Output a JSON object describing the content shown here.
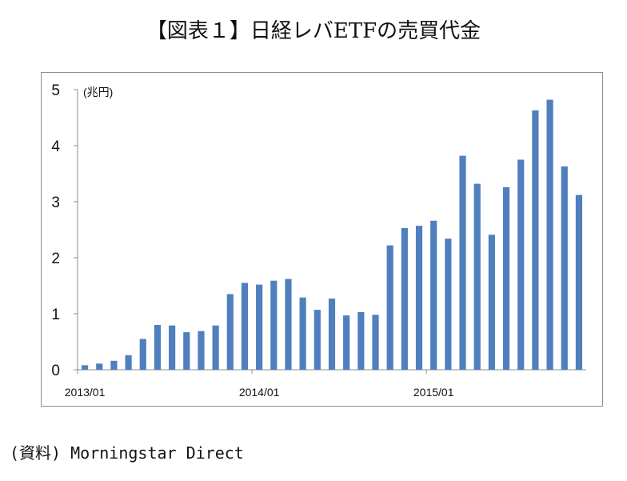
{
  "title": "【図表１】日経レバETFの売買代金",
  "source": "(資料) Morningstar Direct",
  "chart_data": {
    "type": "bar",
    "unit_label": "(兆円)",
    "ylim": [
      0,
      5
    ],
    "y_ticks": [
      0,
      1,
      2,
      3,
      4,
      5
    ],
    "x_tick_labels": [
      {
        "label": "2013/01",
        "index": 0
      },
      {
        "label": "2014/01",
        "index": 12
      },
      {
        "label": "2015/01",
        "index": 24
      }
    ],
    "categories": [
      "2013/01",
      "2013/02",
      "2013/03",
      "2013/04",
      "2013/05",
      "2013/06",
      "2013/07",
      "2013/08",
      "2013/09",
      "2013/10",
      "2013/11",
      "2013/12",
      "2014/01",
      "2014/02",
      "2014/03",
      "2014/04",
      "2014/05",
      "2014/06",
      "2014/07",
      "2014/08",
      "2014/09",
      "2014/10",
      "2014/11",
      "2014/12",
      "2015/01",
      "2015/02",
      "2015/03",
      "2015/04",
      "2015/05",
      "2015/06",
      "2015/07",
      "2015/08",
      "2015/09",
      "2015/10",
      "2015/11"
    ],
    "values": [
      0.08,
      0.11,
      0.16,
      0.26,
      0.55,
      0.8,
      0.79,
      0.67,
      0.69,
      0.79,
      1.35,
      1.55,
      1.52,
      1.59,
      1.62,
      1.29,
      1.07,
      1.27,
      0.97,
      1.03,
      0.98,
      2.22,
      2.53,
      2.57,
      2.66,
      2.34,
      3.82,
      3.32,
      2.41,
      3.26,
      3.75,
      4.63,
      4.82,
      3.63,
      3.12
    ],
    "bar_color": "#4f7fbd",
    "grid": false,
    "legend": "none"
  }
}
